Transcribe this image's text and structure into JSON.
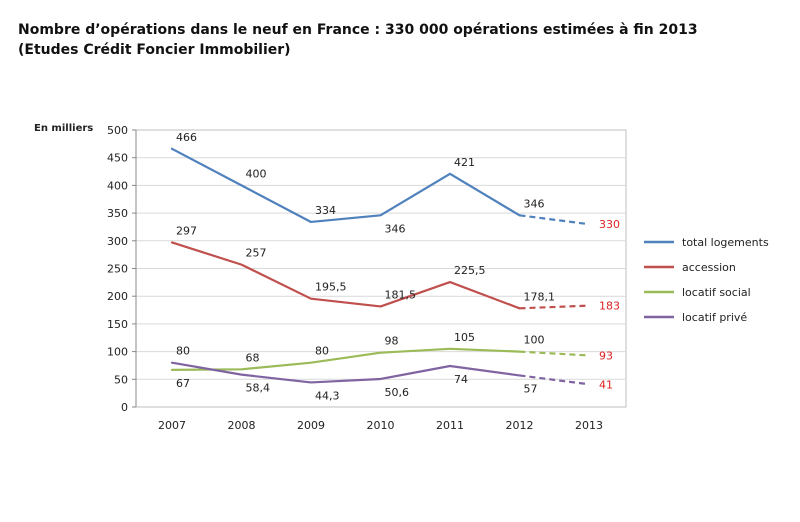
{
  "title_line1": "Nombre d’opérations dans le neuf en France : 330 000 opérations estimées à fin 2013",
  "title_line2": "(Etudes Crédit Foncier Immobilier)",
  "chart_data": {
    "type": "line",
    "unit_label": "En milliers",
    "categories": [
      "2007",
      "2008",
      "2009",
      "2010",
      "2011",
      "2012",
      "2013"
    ],
    "ylim": [
      0,
      500
    ],
    "yticks": [
      0,
      50,
      100,
      150,
      200,
      250,
      300,
      350,
      400,
      450,
      500
    ],
    "grid": true,
    "legend_position": "right",
    "projection_from_index": 5,
    "series": [
      {
        "name": "total logements",
        "color": "#4f81bd",
        "values": [
          466,
          400,
          334,
          346,
          421,
          346,
          330
        ],
        "labels": [
          "466",
          "400",
          "334",
          "346",
          "421",
          "346",
          "330"
        ],
        "label_side": [
          "above",
          "above",
          "above",
          "below",
          "above",
          "above",
          "right"
        ]
      },
      {
        "name": "accession",
        "color": "#c0504d",
        "values": [
          297,
          257,
          195.5,
          181.5,
          225.5,
          178.1,
          183
        ],
        "labels": [
          "297",
          "257",
          "195,5",
          "181,5",
          "225,5",
          "178,1",
          "183"
        ],
        "label_side": [
          "above",
          "above",
          "above",
          "above",
          "above",
          "above",
          "right"
        ]
      },
      {
        "name": "locatif social",
        "color": "#9bbb59",
        "values": [
          67,
          68,
          80,
          98,
          105,
          100,
          93
        ],
        "labels": [
          "67",
          "68",
          "80",
          "98",
          "105",
          "100",
          "93"
        ],
        "label_side": [
          "below",
          "above",
          "above",
          "above",
          "above",
          "above",
          "right"
        ]
      },
      {
        "name": "locatif privé",
        "color": "#8064a2",
        "values": [
          80,
          58.4,
          44.3,
          50.6,
          74,
          57,
          41
        ],
        "labels": [
          "80",
          "58,4",
          "44,3",
          "50,6",
          "74",
          "57",
          "41"
        ],
        "label_side": [
          "above",
          "below",
          "below",
          "below",
          "below",
          "below",
          "right"
        ]
      }
    ]
  }
}
